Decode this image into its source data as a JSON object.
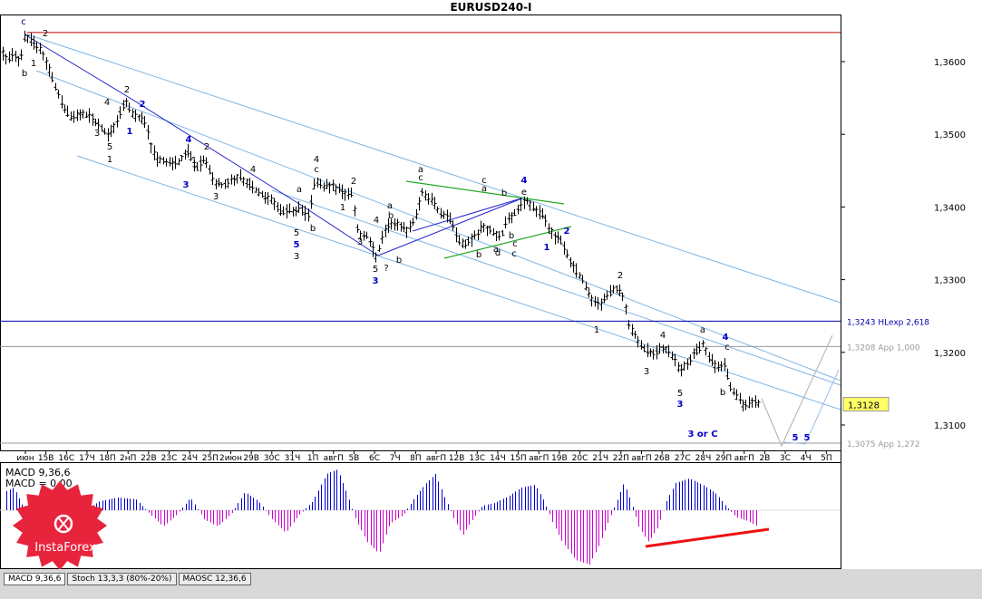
{
  "chart_data": {
    "type": "ohlc",
    "title": "EURUSD240-I",
    "price_axis": {
      "ylim": [
        1.3064,
        1.3676
      ],
      "tick_labels": [
        "1,3600",
        "1,3500",
        "1,3400",
        "1,3300",
        "1,3200",
        "1,3100"
      ],
      "tick_values": [
        1.36,
        1.35,
        1.34,
        1.33,
        1.32,
        1.31
      ]
    },
    "date_labels": [
      "июн",
      "15B",
      "16C",
      "17Ч",
      "18П",
      "2нП",
      "22B",
      "23C",
      "24Ч",
      "25П",
      "2июн",
      "29B",
      "30C",
      "31Ч",
      "1П",
      "авгП",
      "5B",
      "6C",
      "7Ч",
      "8П",
      "авгП",
      "12B",
      "13C",
      "14Ч",
      "15П",
      "авгП",
      "19B",
      "20C",
      "21Ч",
      "22П",
      "авгП",
      "26B",
      "27C",
      "28Ч",
      "29П",
      "авгП",
      "2B",
      "3C",
      "4Ч",
      "5П"
    ],
    "current_price_label": "1,3128",
    "current_price": 1.3128,
    "levels": [
      {
        "label": "",
        "value": 1.364,
        "color": "#c00000"
      },
      {
        "label": "1,3243 HLexp 2,618",
        "value": 1.3243,
        "color": "#0000aa"
      },
      {
        "label": "1,3208 App 1,000",
        "value": 1.3208,
        "color": "#9a9a9a"
      },
      {
        "label": "1,3075 App 1,272",
        "value": 1.3075,
        "color": "#9a9a9a"
      }
    ],
    "wave_labels": [
      {
        "t": "c",
        "color": "#000080"
      },
      {
        "t": "2",
        "color": "#000000"
      },
      {
        "t": "1",
        "color": "#000000"
      },
      {
        "t": "b",
        "color": "#000000"
      },
      {
        "t": "2",
        "color": "#000000"
      },
      {
        "t": "2",
        "color": "#0000cc"
      },
      {
        "t": "4",
        "color": "#000000"
      },
      {
        "t": "1",
        "color": "#0000cc"
      },
      {
        "t": "3",
        "color": "#000000"
      },
      {
        "t": "5",
        "color": "#000000"
      },
      {
        "t": "1",
        "color": "#000000"
      },
      {
        "t": "4",
        "color": "#0000cc"
      },
      {
        "t": "2",
        "color": "#000000"
      },
      {
        "t": "3",
        "color": "#0000cc"
      },
      {
        "t": "1",
        "color": "#000000"
      },
      {
        "t": "3",
        "color": "#000000"
      },
      {
        "t": "4",
        "color": "#000000"
      },
      {
        "t": "5",
        "color": "#000000"
      },
      {
        "t": "5",
        "color": "#0000cc"
      },
      {
        "t": "3",
        "color": "#000000"
      },
      {
        "t": "4",
        "color": "#000000"
      },
      {
        "t": "c",
        "color": "#000000"
      },
      {
        "t": "a",
        "color": "#000000"
      },
      {
        "t": "b",
        "color": "#000000"
      },
      {
        "t": "2",
        "color": "#000000"
      },
      {
        "t": "1",
        "color": "#000000"
      },
      {
        "t": "3",
        "color": "#000000"
      },
      {
        "t": "4",
        "color": "#000000"
      },
      {
        "t": "5",
        "color": "#000000"
      },
      {
        "t": "3",
        "color": "#0000cc"
      },
      {
        "t": "?",
        "color": "#000000"
      },
      {
        "t": "a",
        "color": "#000000"
      },
      {
        "t": "b",
        "color": "#000000"
      },
      {
        "t": "a",
        "color": "#000000"
      },
      {
        "t": "c",
        "color": "#000000"
      },
      {
        "t": "b",
        "color": "#000000"
      },
      {
        "t": "c",
        "color": "#000000"
      },
      {
        "t": "a",
        "color": "#000000"
      },
      {
        "t": "b",
        "color": "#000000"
      },
      {
        "t": "d",
        "color": "#000000"
      },
      {
        "t": "c",
        "color": "#000000"
      },
      {
        "t": "e",
        "color": "#000000"
      },
      {
        "t": "b",
        "color": "#000000"
      },
      {
        "t": "4",
        "color": "#0000cc"
      },
      {
        "t": "a",
        "color": "#000000"
      },
      {
        "t": "c",
        "color": "#000000"
      },
      {
        "t": "b",
        "color": "#000000"
      },
      {
        "t": "1",
        "color": "#0000cc"
      },
      {
        "t": "2",
        "color": "#0000cc"
      },
      {
        "t": "2",
        "color": "#000000"
      },
      {
        "t": "1",
        "color": "#000000"
      },
      {
        "t": "4",
        "color": "#000000"
      },
      {
        "t": "3",
        "color": "#000000"
      },
      {
        "t": "5",
        "color": "#000000"
      },
      {
        "t": "3",
        "color": "#0000cc"
      },
      {
        "t": "a",
        "color": "#000000"
      },
      {
        "t": "4",
        "color": "#0000cc"
      },
      {
        "t": "c",
        "color": "#000000"
      },
      {
        "t": "b",
        "color": "#000000"
      },
      {
        "t": "3 or C",
        "color": "#0000cc"
      },
      {
        "t": "5",
        "color": "#0000cc"
      },
      {
        "t": "5",
        "color": "#0000cc"
      }
    ],
    "indicator": {
      "name": "MACD 9,36,6",
      "signal_label": "MACD = 0,00",
      "signal_value": "0,00"
    },
    "tabs": [
      "MACD 9,36,6",
      "Stoch 13,3,3 (80%-20%)",
      "MAOSC 12,36,6"
    ],
    "logo_text": "InstaForex",
    "colors": {
      "bars": "#000000",
      "macd_up": "#0000cc",
      "macd_down": "#cc00cc",
      "divergence": "#ee1111",
      "channel": "#7eb6e6",
      "wave_line": "#2222cc",
      "triangle": "#22aa22",
      "logo": "#e8243c"
    }
  }
}
